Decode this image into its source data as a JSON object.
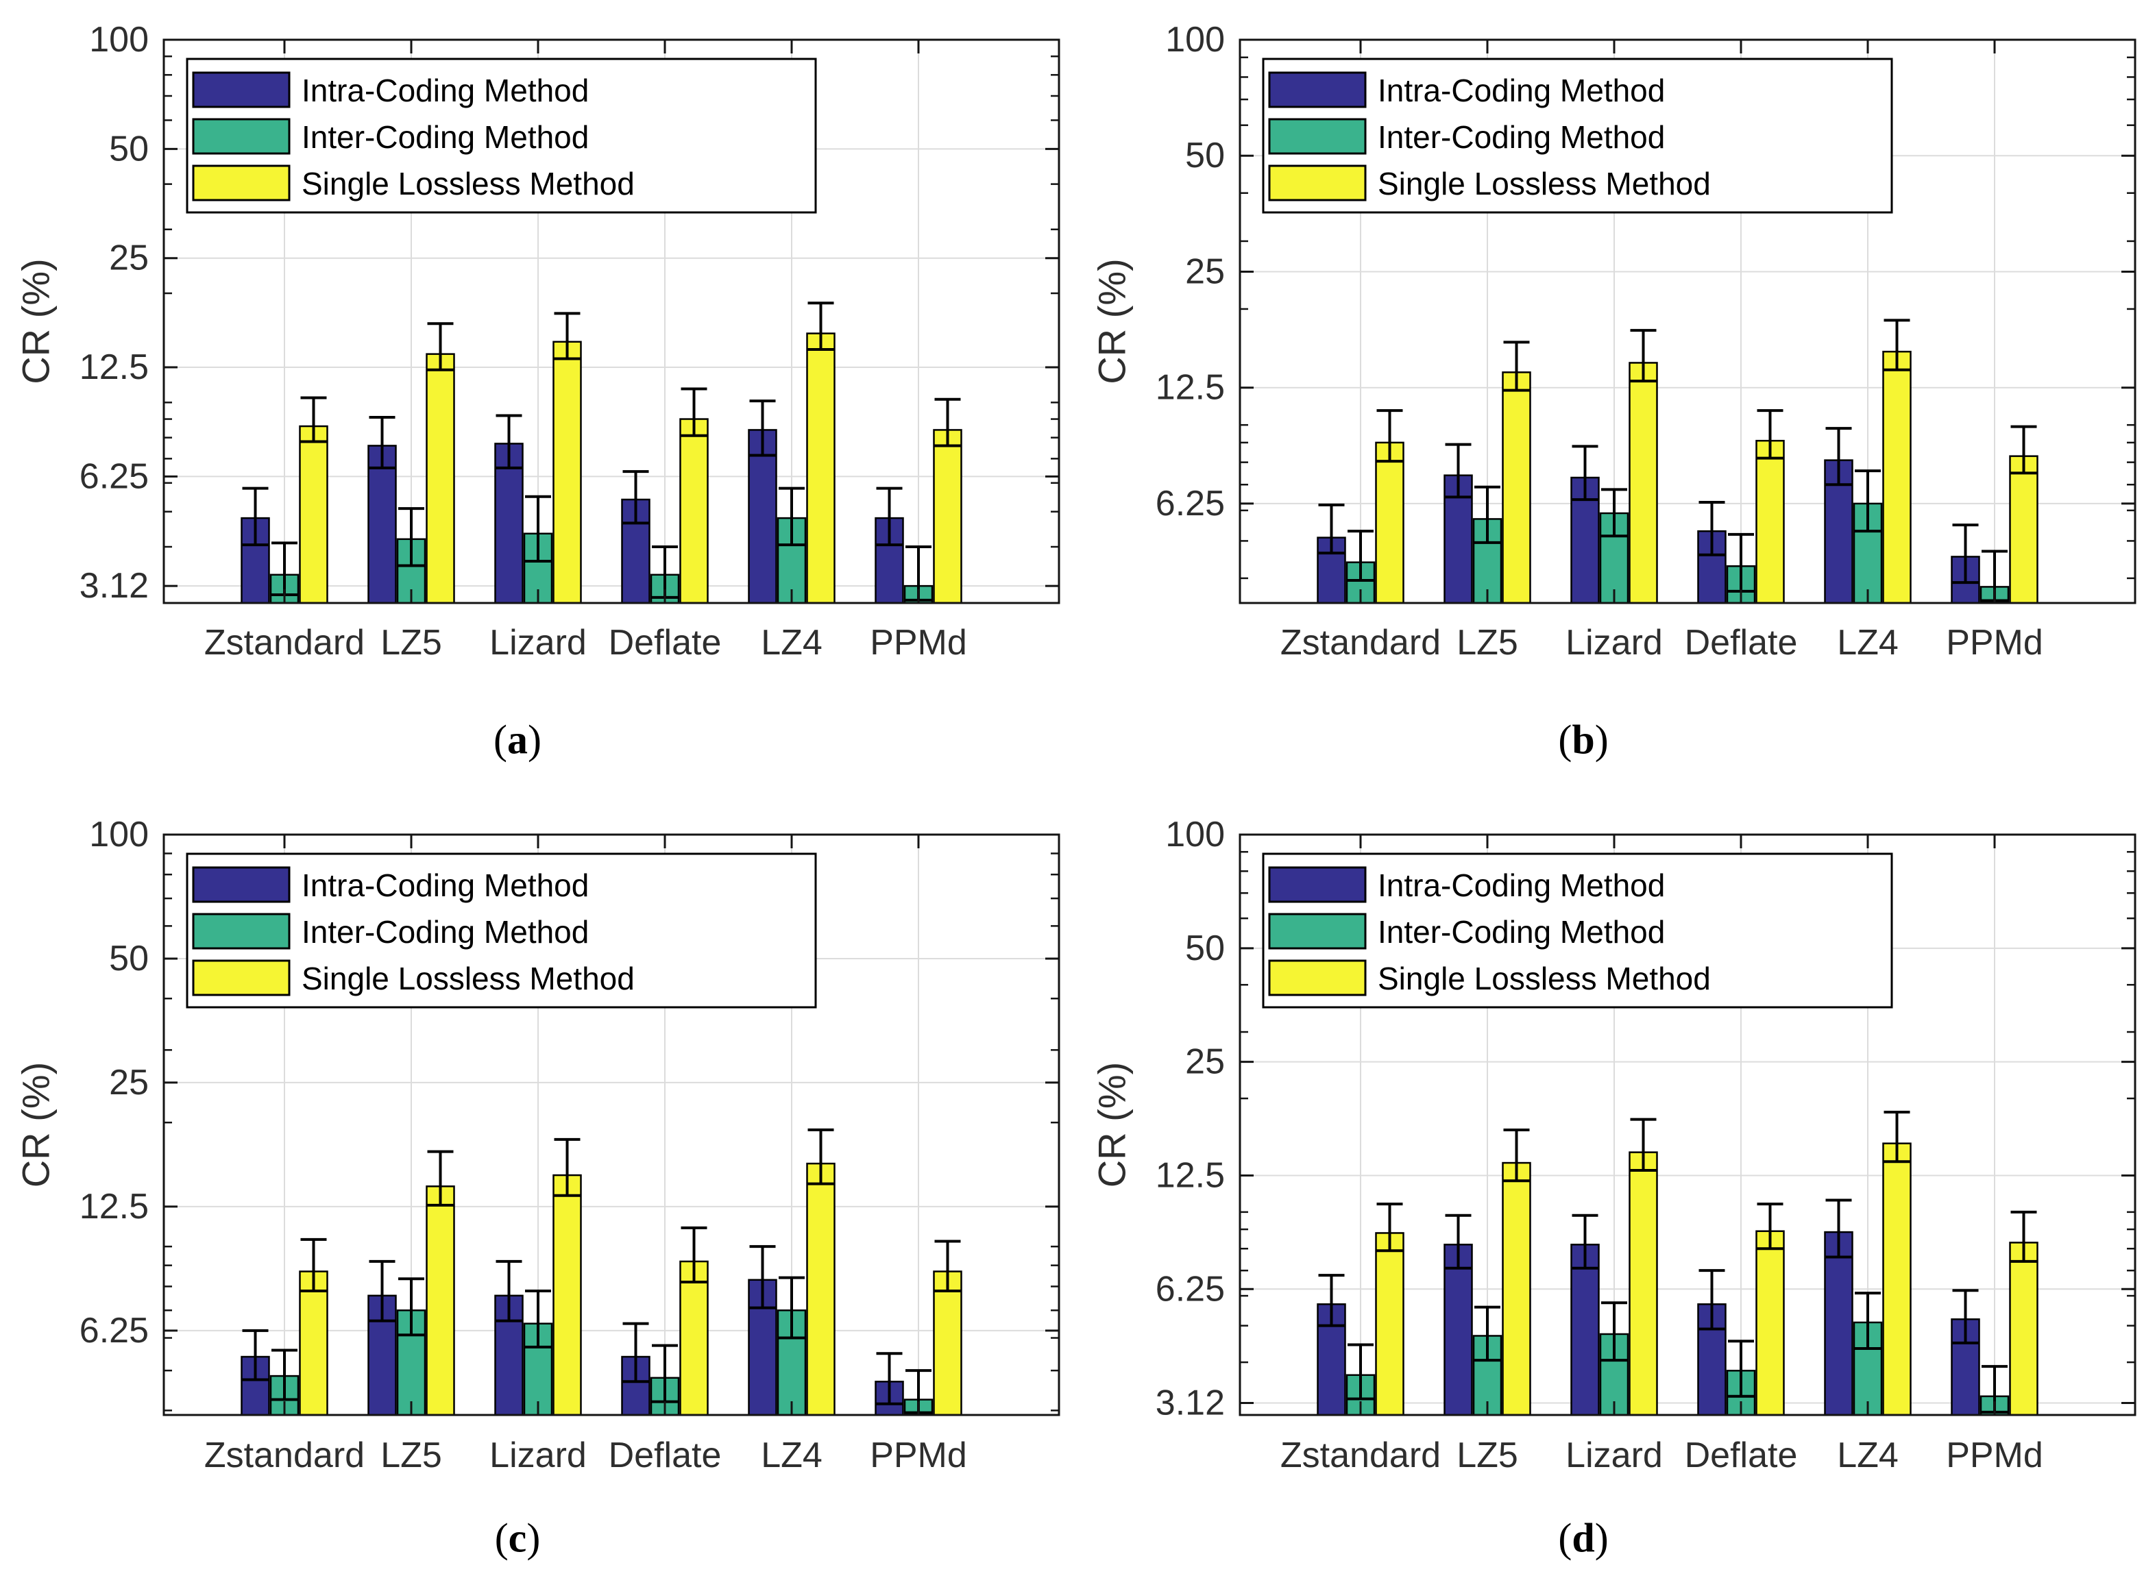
{
  "figure": {
    "ylabel": "CR (%)",
    "background": "#ffffff",
    "grid_color": "#dcdcdc",
    "axis_color": "#141414",
    "tick_label_color": "#2e2e2e",
    "error_bar_color": "#000000"
  },
  "chart_data": [
    {
      "id": "a",
      "type": "bar",
      "caption": {
        "open": "(",
        "letter": "a",
        "close": ")"
      },
      "ylabel": "CR (%)",
      "yscale": "log2",
      "ylim": [
        2.8,
        100
      ],
      "grid": true,
      "legend_position": "top-left",
      "yticks": [
        {
          "v": 100,
          "t": "100"
        },
        {
          "v": 50,
          "t": "50"
        },
        {
          "v": 25,
          "t": "25"
        },
        {
          "v": 12.5,
          "t": "12.5"
        },
        {
          "v": 6.25,
          "t": "6.25"
        },
        {
          "v": 3.12,
          "t": "3.12"
        }
      ],
      "yminor": [
        4,
        5,
        6,
        7,
        8,
        9,
        10,
        20,
        30,
        40,
        60,
        70,
        80,
        90
      ],
      "categories": [
        "Zstandard",
        "LZ5",
        "Lizard",
        "Deflate",
        "LZ4",
        "PPMd"
      ],
      "series": [
        {
          "name": "Intra-Coding Method",
          "color": "#353190",
          "values": [
            4.8,
            7.6,
            7.7,
            5.4,
            8.4,
            4.8
          ],
          "err_lo": [
            4.05,
            6.6,
            6.6,
            4.65,
            7.15,
            4.05
          ],
          "err_hi": [
            5.8,
            9.1,
            9.2,
            6.45,
            10.1,
            5.8
          ]
        },
        {
          "name": "Inter-Coding Method",
          "color": "#3ab38d",
          "values": [
            3.35,
            4.2,
            4.35,
            3.35,
            4.8,
            3.12
          ],
          "err_lo": [
            2.95,
            3.55,
            3.65,
            2.9,
            4.05,
            2.85
          ],
          "err_hi": [
            4.1,
            5.1,
            5.5,
            4.0,
            5.8,
            4.0
          ]
        },
        {
          "name": "Single Lossless Method",
          "color": "#f6f533",
          "values": [
            8.6,
            13.6,
            14.7,
            9.0,
            15.5,
            8.4
          ],
          "err_lo": [
            7.8,
            12.3,
            13.2,
            8.1,
            14.0,
            7.6
          ],
          "err_hi": [
            10.3,
            16.5,
            17.6,
            10.9,
            18.8,
            10.2
          ]
        }
      ]
    },
    {
      "id": "b",
      "type": "bar",
      "caption": {
        "open": "(",
        "letter": "b",
        "close": ")"
      },
      "ylabel": "CR (%)",
      "yscale": "log2",
      "ylim": [
        3.45,
        100
      ],
      "grid": true,
      "legend_position": "top-left",
      "yticks": [
        {
          "v": 100,
          "t": "100"
        },
        {
          "v": 50,
          "t": "50"
        },
        {
          "v": 25,
          "t": "25"
        },
        {
          "v": 12.5,
          "t": "12.5"
        },
        {
          "v": 6.25,
          "t": "6.25"
        }
      ],
      "yminor": [
        4,
        5,
        6,
        7,
        8,
        9,
        10,
        20,
        30,
        40,
        60,
        70,
        80,
        90
      ],
      "categories": [
        "Zstandard",
        "LZ5",
        "Lizard",
        "Deflate",
        "LZ4",
        "PPMd"
      ],
      "series": [
        {
          "name": "Intra-Coding Method",
          "color": "#353190",
          "values": [
            5.1,
            7.4,
            7.3,
            5.3,
            8.1,
            4.55
          ],
          "err_lo": [
            4.65,
            6.5,
            6.4,
            4.6,
            7.0,
            3.9
          ],
          "err_hi": [
            6.2,
            8.9,
            8.8,
            6.3,
            9.8,
            5.5
          ]
        },
        {
          "name": "Inter-Coding Method",
          "color": "#3ab38d",
          "values": [
            4.4,
            5.7,
            5.9,
            4.3,
            6.25,
            3.8
          ],
          "err_lo": [
            3.95,
            4.95,
            5.15,
            3.7,
            5.3,
            3.5
          ],
          "err_hi": [
            5.3,
            6.9,
            6.8,
            5.2,
            7.6,
            4.7
          ]
        },
        {
          "name": "Single Lossless Method",
          "color": "#f6f533",
          "values": [
            9.0,
            13.7,
            14.5,
            9.1,
            15.5,
            8.3
          ],
          "err_lo": [
            8.05,
            12.3,
            13.0,
            8.2,
            13.9,
            7.5
          ],
          "err_hi": [
            10.9,
            16.4,
            17.6,
            10.9,
            18.7,
            9.9
          ]
        }
      ]
    },
    {
      "id": "c",
      "type": "bar",
      "caption": {
        "open": "(",
        "letter": "c",
        "close": ")"
      },
      "ylabel": "CR (%)",
      "yscale": "log2",
      "ylim": [
        3.9,
        100
      ],
      "grid": true,
      "legend_position": "top-left",
      "yticks": [
        {
          "v": 100,
          "t": "100"
        },
        {
          "v": 50,
          "t": "50"
        },
        {
          "v": 25,
          "t": "25"
        },
        {
          "v": 12.5,
          "t": "12.5"
        },
        {
          "v": 6.25,
          "t": "6.25"
        }
      ],
      "yminor": [
        4,
        5,
        6,
        7,
        8,
        9,
        10,
        20,
        30,
        40,
        60,
        70,
        80,
        90
      ],
      "categories": [
        "Zstandard",
        "LZ5",
        "Lizard",
        "Deflate",
        "LZ4",
        "PPMd"
      ],
      "series": [
        {
          "name": "Intra-Coding Method",
          "color": "#353190",
          "values": [
            5.4,
            7.6,
            7.6,
            5.4,
            8.3,
            4.7
          ],
          "err_lo": [
            4.75,
            6.6,
            6.6,
            4.7,
            7.1,
            4.15
          ],
          "err_hi": [
            6.25,
            9.2,
            9.2,
            6.5,
            10.0,
            5.5
          ]
        },
        {
          "name": "Inter-Coding Method",
          "color": "#3ab38d",
          "values": [
            4.85,
            7.0,
            6.5,
            4.8,
            7.0,
            4.25
          ],
          "err_lo": [
            4.25,
            6.1,
            5.7,
            4.2,
            6.0,
            3.95
          ],
          "err_hi": [
            5.6,
            8.35,
            7.8,
            5.75,
            8.4,
            5.0
          ]
        },
        {
          "name": "Single Lossless Method",
          "color": "#f6f533",
          "values": [
            8.7,
            14.0,
            14.9,
            9.2,
            15.9,
            8.7
          ],
          "err_lo": [
            7.8,
            12.6,
            13.3,
            8.2,
            14.2,
            7.8
          ],
          "err_hi": [
            10.4,
            17.0,
            18.2,
            11.1,
            19.2,
            10.3
          ]
        }
      ]
    },
    {
      "id": "d",
      "type": "bar",
      "caption": {
        "open": "(",
        "letter": "d",
        "close": ")"
      },
      "ylabel": "CR (%)",
      "yscale": "log2",
      "ylim": [
        2.9,
        100
      ],
      "grid": true,
      "legend_position": "top-left",
      "yticks": [
        {
          "v": 100,
          "t": "100"
        },
        {
          "v": 50,
          "t": "50"
        },
        {
          "v": 25,
          "t": "25"
        },
        {
          "v": 12.5,
          "t": "12.5"
        },
        {
          "v": 6.25,
          "t": "6.25"
        },
        {
          "v": 3.12,
          "t": "3.12"
        }
      ],
      "yminor": [
        4,
        5,
        6,
        7,
        8,
        9,
        10,
        20,
        30,
        40,
        60,
        70,
        80,
        90
      ],
      "categories": [
        "Zstandard",
        "LZ5",
        "Lizard",
        "Deflate",
        "LZ4",
        "PPMd"
      ],
      "series": [
        {
          "name": "Intra-Coding Method",
          "color": "#353190",
          "values": [
            5.7,
            8.2,
            8.2,
            5.7,
            8.85,
            5.2
          ],
          "err_lo": [
            5.0,
            7.1,
            7.1,
            4.9,
            7.6,
            4.5
          ],
          "err_hi": [
            6.8,
            9.8,
            9.8,
            7.0,
            10.75,
            6.2
          ]
        },
        {
          "name": "Inter-Coding Method",
          "color": "#3ab38d",
          "values": [
            3.7,
            4.7,
            4.75,
            3.8,
            5.1,
            3.25
          ],
          "err_lo": [
            3.2,
            4.05,
            4.05,
            3.25,
            4.35,
            2.95
          ],
          "err_hi": [
            4.45,
            5.6,
            5.75,
            4.55,
            6.1,
            3.9
          ]
        },
        {
          "name": "Single Lossless Method",
          "color": "#f6f533",
          "values": [
            8.8,
            13.5,
            14.4,
            8.9,
            15.2,
            8.3
          ],
          "err_lo": [
            7.9,
            12.1,
            12.9,
            8.0,
            13.6,
            7.4
          ],
          "err_hi": [
            10.5,
            16.5,
            17.6,
            10.5,
            18.4,
            10.0
          ]
        }
      ]
    }
  ]
}
